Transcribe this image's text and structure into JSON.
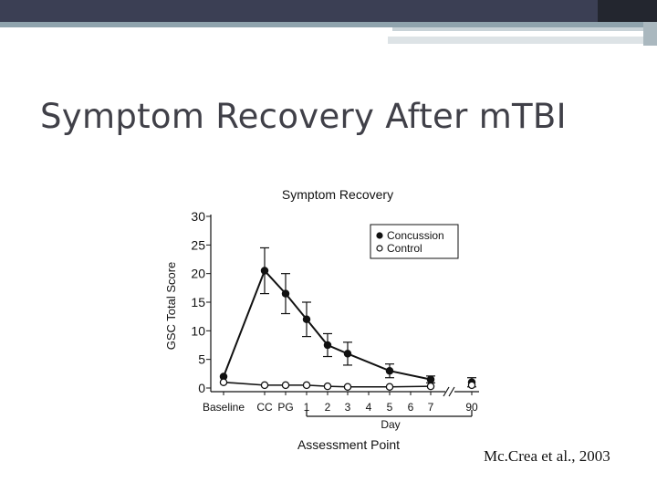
{
  "slide": {
    "title": "Symptom Recovery After mTBI",
    "citation": "Mc.Crea et al., 2003"
  },
  "chart_data": {
    "type": "line",
    "title": "Symptom Recovery",
    "xlabel": "Assessment Point",
    "ylabel": "GSC Total Score",
    "categories": [
      "Baseline",
      "CC",
      "PG",
      "1",
      "2",
      "3",
      "4",
      "5",
      "6",
      "7",
      "90"
    ],
    "day_label": "Day",
    "ylim": [
      0,
      30
    ],
    "yticks": [
      0,
      5,
      10,
      15,
      20,
      25,
      30
    ],
    "axis_break_between": [
      "7",
      "90"
    ],
    "grid": false,
    "legend_position": "top-right",
    "series": [
      {
        "name": "Concussion",
        "marker": "filled-circle",
        "color": "#111111",
        "x": [
          "Baseline",
          "CC",
          "PG",
          "1",
          "2",
          "3",
          "5",
          "7",
          "90"
        ],
        "values": [
          2,
          20.5,
          16.5,
          12,
          7.5,
          6,
          3,
          1.5,
          1
        ],
        "error": [
          null,
          4,
          3.5,
          3,
          2,
          2,
          1.2,
          0.6,
          0.8
        ]
      },
      {
        "name": "Control",
        "marker": "open-circle",
        "color": "#111111",
        "x": [
          "Baseline",
          "CC",
          "PG",
          "1",
          "2",
          "3",
          "5",
          "7",
          "90"
        ],
        "values": [
          1,
          0.5,
          0.5,
          0.5,
          0.3,
          0.2,
          0.2,
          0.3,
          0.5
        ],
        "error": [
          null,
          null,
          null,
          null,
          null,
          null,
          null,
          null,
          null
        ]
      }
    ]
  }
}
